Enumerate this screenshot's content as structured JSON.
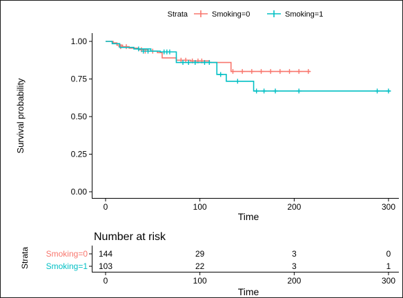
{
  "chart_data": [
    {
      "type": "line",
      "subtype": "kaplan-meier-step",
      "xlabel": "Time",
      "ylabel": "Survival probability",
      "xlim": [
        0,
        300
      ],
      "ylim": [
        0,
        1
      ],
      "xticks": [
        "0",
        "100",
        "200",
        "300"
      ],
      "yticks": [
        "0.00",
        "0.25",
        "0.50",
        "0.75",
        "1.00"
      ],
      "grid": false,
      "legend": {
        "title": "Strata",
        "placement": "top"
      },
      "series": [
        {
          "name": "Smoking=0",
          "color": "#f8766d",
          "steps": [
            [
              0,
              1.0
            ],
            [
              8,
              0.99
            ],
            [
              12,
              0.975
            ],
            [
              18,
              0.965
            ],
            [
              25,
              0.955
            ],
            [
              35,
              0.945
            ],
            [
              45,
              0.935
            ],
            [
              55,
              0.925
            ],
            [
              60,
              0.89
            ],
            [
              75,
              0.875
            ],
            [
              90,
              0.87
            ],
            [
              110,
              0.86
            ],
            [
              133,
              0.8
            ],
            [
              217,
              0.8
            ]
          ],
          "censored": [
            [
              16,
              0.965
            ],
            [
              22,
              0.965
            ],
            [
              38,
              0.945
            ],
            [
              42,
              0.935
            ],
            [
              50,
              0.935
            ],
            [
              80,
              0.875
            ],
            [
              85,
              0.875
            ],
            [
              92,
              0.87
            ],
            [
              98,
              0.87
            ],
            [
              102,
              0.87
            ],
            [
              135,
              0.8
            ],
            [
              145,
              0.8
            ],
            [
              155,
              0.8
            ],
            [
              165,
              0.8
            ],
            [
              175,
              0.8
            ],
            [
              185,
              0.8
            ],
            [
              195,
              0.8
            ],
            [
              205,
              0.8
            ],
            [
              215,
              0.8
            ]
          ]
        },
        {
          "name": "Smoking=1",
          "color": "#00bfc4",
          "steps": [
            [
              0,
              1.0
            ],
            [
              7,
              0.985
            ],
            [
              15,
              0.96
            ],
            [
              30,
              0.95
            ],
            [
              48,
              0.935
            ],
            [
              58,
              0.93
            ],
            [
              75,
              0.86
            ],
            [
              118,
              0.78
            ],
            [
              128,
              0.735
            ],
            [
              157,
              0.67
            ],
            [
              302,
              0.67
            ]
          ],
          "censored": [
            [
              35,
              0.95
            ],
            [
              40,
              0.935
            ],
            [
              45,
              0.935
            ],
            [
              62,
              0.93
            ],
            [
              65,
              0.93
            ],
            [
              68,
              0.93
            ],
            [
              82,
              0.86
            ],
            [
              88,
              0.86
            ],
            [
              95,
              0.86
            ],
            [
              105,
              0.86
            ],
            [
              110,
              0.86
            ],
            [
              122,
              0.78
            ],
            [
              140,
              0.735
            ],
            [
              160,
              0.67
            ],
            [
              168,
              0.67
            ],
            [
              180,
              0.67
            ],
            [
              205,
              0.67
            ],
            [
              288,
              0.67
            ],
            [
              300,
              0.67
            ]
          ]
        }
      ]
    },
    {
      "type": "table",
      "title": "Number at risk",
      "ylabel": "Strata",
      "xlabel": "Time",
      "xticks": [
        "0",
        "100",
        "200",
        "300"
      ],
      "x": [
        0,
        100,
        200,
        300
      ],
      "rows": [
        {
          "name": "Smoking=0",
          "color": "#f8766d",
          "values": [
            "144",
            "29",
            "3",
            "0"
          ]
        },
        {
          "name": "Smoking=1",
          "color": "#00bfc4",
          "values": [
            "103",
            "22",
            "3",
            "1"
          ]
        }
      ]
    }
  ]
}
